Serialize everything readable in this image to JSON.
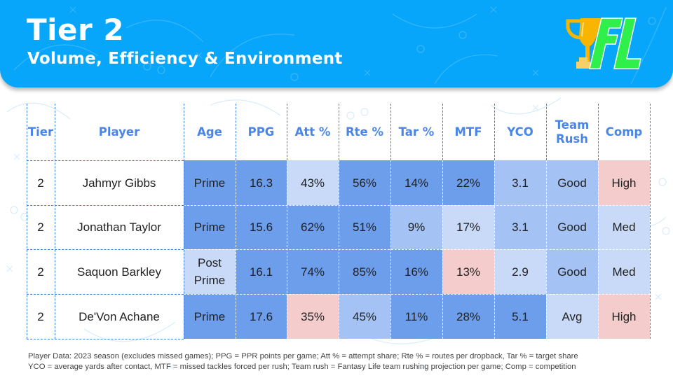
{
  "header": {
    "title": "Tier 2",
    "subtitle": "Volume, Efficiency & Environment",
    "logo": {
      "icon": "trophy-icon",
      "text": "FL",
      "trophy_color": "#f7b500",
      "text_color": "#2ff04a"
    },
    "banner_color": "#07a6fb"
  },
  "colors": {
    "dark": "#6d9eeb",
    "mid": "#a4c2f4",
    "light": "#c9daf8",
    "pink": "#f4cccc",
    "header_text": "#4a86e8"
  },
  "table": {
    "columns": [
      "Tier",
      "Player",
      "Age",
      "PPG",
      "Att %",
      "Rte %",
      "Tar %",
      "MTF",
      "YCO",
      "Team Rush",
      "Comp"
    ],
    "rows": [
      {
        "tier": "2",
        "player": "Jahmyr Gibbs",
        "cells": [
          {
            "value": "Prime",
            "shade": "dark"
          },
          {
            "value": "16.3",
            "shade": "dark"
          },
          {
            "value": "43%",
            "shade": "light"
          },
          {
            "value": "56%",
            "shade": "dark"
          },
          {
            "value": "14%",
            "shade": "dark"
          },
          {
            "value": "22%",
            "shade": "dark"
          },
          {
            "value": "3.1",
            "shade": "mid"
          },
          {
            "value": "Good",
            "shade": "mid"
          },
          {
            "value": "High",
            "shade": "pink"
          }
        ]
      },
      {
        "tier": "2",
        "player": "Jonathan Taylor",
        "cells": [
          {
            "value": "Prime",
            "shade": "dark"
          },
          {
            "value": "15.6",
            "shade": "dark"
          },
          {
            "value": "62%",
            "shade": "dark"
          },
          {
            "value": "51%",
            "shade": "dark"
          },
          {
            "value": "9%",
            "shade": "mid"
          },
          {
            "value": "17%",
            "shade": "light"
          },
          {
            "value": "3.1",
            "shade": "mid"
          },
          {
            "value": "Good",
            "shade": "mid"
          },
          {
            "value": "Med",
            "shade": "light"
          }
        ]
      },
      {
        "tier": "2",
        "player": "Saquon Barkley",
        "cells": [
          {
            "value": "Post Prime",
            "shade": "light"
          },
          {
            "value": "16.1",
            "shade": "dark"
          },
          {
            "value": "74%",
            "shade": "dark"
          },
          {
            "value": "85%",
            "shade": "dark"
          },
          {
            "value": "16%",
            "shade": "dark"
          },
          {
            "value": "13%",
            "shade": "pink"
          },
          {
            "value": "2.9",
            "shade": "light"
          },
          {
            "value": "Good",
            "shade": "mid"
          },
          {
            "value": "Med",
            "shade": "light"
          }
        ]
      },
      {
        "tier": "2",
        "player": "De'Von Achane",
        "cells": [
          {
            "value": "Prime",
            "shade": "dark"
          },
          {
            "value": "17.6",
            "shade": "dark"
          },
          {
            "value": "35%",
            "shade": "pink"
          },
          {
            "value": "45%",
            "shade": "mid"
          },
          {
            "value": "11%",
            "shade": "dark"
          },
          {
            "value": "28%",
            "shade": "dark"
          },
          {
            "value": "5.1",
            "shade": "dark"
          },
          {
            "value": "Avg",
            "shade": "light"
          },
          {
            "value": "High",
            "shade": "pink"
          }
        ]
      }
    ]
  },
  "footnote": {
    "line1": "Player Data: 2023 season (excludes missed games); PPG = PPR points per game; Att % = attempt share; Rte % = routes per dropback, Tar % = target share",
    "line2": "YCO = average yards after contact, MTF = missed tackles forced per rush; Team rush = Fantasy Life team rushing projection per game; Comp = competition"
  }
}
